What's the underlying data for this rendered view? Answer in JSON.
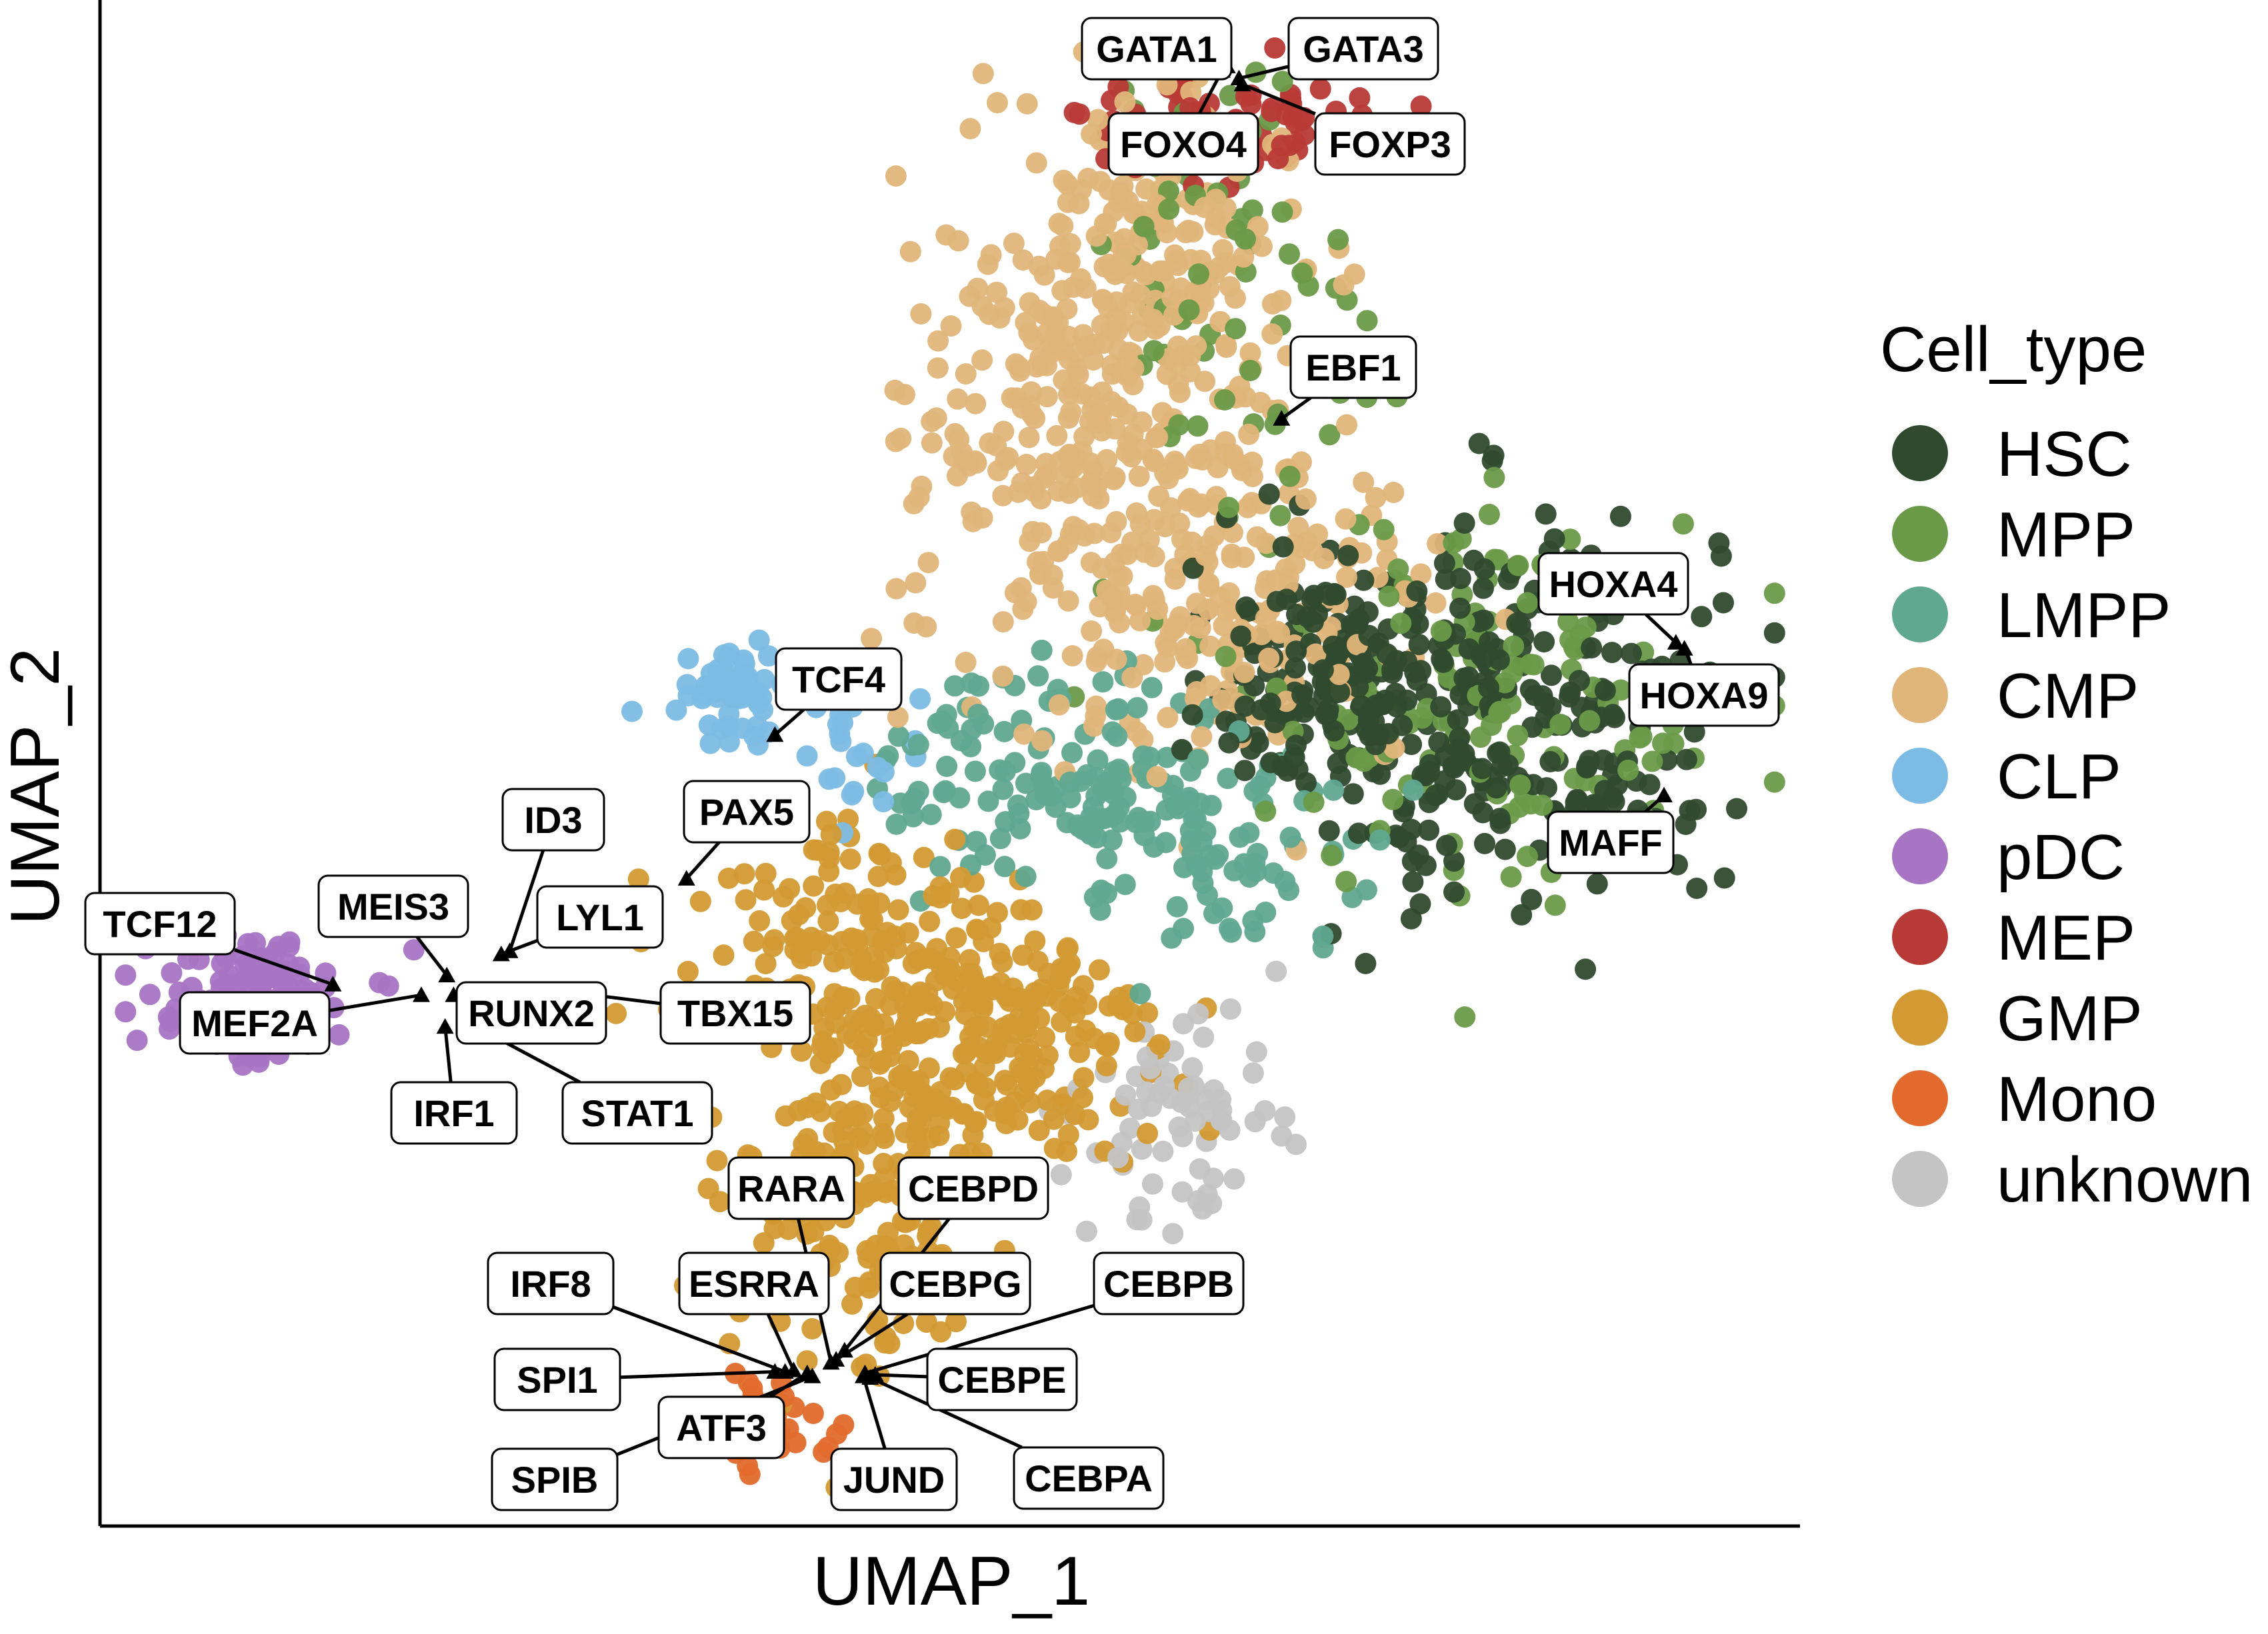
{
  "chart_data": {
    "type": "scatter",
    "xlabel": "UMAP_1",
    "ylabel": "UMAP_2",
    "grid": false,
    "axis_ticks": false,
    "legend": {
      "title": "Cell_type",
      "placement": "right"
    },
    "xlim": [
      0,
      100
    ],
    "ylim": [
      0,
      100
    ],
    "series": [
      {
        "name": "HSC",
        "color": "#2F4A2E",
        "count": 420,
        "clusters": [
          {
            "cx": 82,
            "cy": 54,
            "sx": 6.5,
            "sy": 6.5,
            "frac": 0.7
          },
          {
            "cx": 72,
            "cy": 57,
            "sx": 3,
            "sy": 4,
            "frac": 0.3
          }
        ]
      },
      {
        "name": "MPP",
        "color": "#6A9A48",
        "count": 230,
        "clusters": [
          {
            "cx": 82,
            "cy": 55,
            "sx": 8.5,
            "sy": 6.5,
            "frac": 0.7
          },
          {
            "cx": 66,
            "cy": 84,
            "sx": 4,
            "sy": 6,
            "frac": 0.3
          }
        ]
      },
      {
        "name": "LMPP",
        "color": "#60A890",
        "count": 210,
        "clusters": [
          {
            "cx": 56,
            "cy": 50,
            "sx": 5,
            "sy": 3.5,
            "frac": 0.6
          },
          {
            "cx": 66,
            "cy": 45,
            "sx": 5,
            "sy": 3.5,
            "frac": 0.4
          }
        ]
      },
      {
        "name": "CMP",
        "color": "#E0B57A",
        "count": 620,
        "clusters": [
          {
            "cx": 59,
            "cy": 74,
            "sx": 5.5,
            "sy": 9,
            "frac": 0.6
          },
          {
            "cx": 67,
            "cy": 60,
            "sx": 6,
            "sy": 5,
            "frac": 0.25
          },
          {
            "cx": 63,
            "cy": 86,
            "sx": 4,
            "sy": 4,
            "frac": 0.15
          }
        ]
      },
      {
        "name": "CLP",
        "color": "#7CBCE4",
        "count": 80,
        "clusters": [
          {
            "cx": 37.5,
            "cy": 55,
            "sx": 1.5,
            "sy": 1.3,
            "frac": 0.7
          },
          {
            "cx": 43,
            "cy": 51,
            "sx": 3,
            "sy": 3,
            "frac": 0.3
          }
        ]
      },
      {
        "name": "pDC",
        "color": "#A874C4",
        "count": 110,
        "clusters": [
          {
            "cx": 9,
            "cy": 35,
            "sx": 3,
            "sy": 2.2,
            "frac": 1.0
          }
        ]
      },
      {
        "name": "MEP",
        "color": "#B83A36",
        "count": 80,
        "clusters": [
          {
            "cx": 66,
            "cy": 93,
            "sx": 5,
            "sy": 2,
            "frac": 1.0
          }
        ]
      },
      {
        "name": "GMP",
        "color": "#D39A34",
        "count": 520,
        "clusters": [
          {
            "cx": 52,
            "cy": 32,
            "sx": 5,
            "sy": 5,
            "frac": 0.45
          },
          {
            "cx": 45,
            "cy": 22,
            "sx": 3.5,
            "sy": 6,
            "frac": 0.35
          },
          {
            "cx": 43,
            "cy": 39,
            "sx": 5,
            "sy": 4,
            "frac": 0.2
          }
        ]
      },
      {
        "name": "Mono",
        "color": "#E26A2C",
        "count": 40,
        "clusters": [
          {
            "cx": 40,
            "cy": 6.5,
            "sx": 2,
            "sy": 1.4,
            "frac": 1.0
          }
        ]
      },
      {
        "name": "unknown",
        "color": "#C4C4C4",
        "count": 70,
        "clusters": [
          {
            "cx": 63.5,
            "cy": 27,
            "sx": 3,
            "sy": 3.5,
            "frac": 1.0
          }
        ]
      }
    ],
    "annotations": [
      {
        "label": "GATA1",
        "x": 66.3,
        "y": 96.5
      },
      {
        "label": "GATA3",
        "x": 67.0,
        "y": 95.7
      },
      {
        "label": "FOXO4",
        "x": 66.0,
        "y": 96.2
      },
      {
        "label": "FOXP3",
        "x": 67.2,
        "y": 95.3
      },
      {
        "label": "EBF1",
        "x": 69.5,
        "y": 73.2
      },
      {
        "label": "HOXA4",
        "x": 92.7,
        "y": 58.4
      },
      {
        "label": "HOXA9",
        "x": 93.2,
        "y": 58.0
      },
      {
        "label": "MAFF",
        "x": 92.0,
        "y": 48.3
      },
      {
        "label": "TCF4",
        "x": 39.7,
        "y": 52.3
      },
      {
        "label": "PAX5",
        "x": 34.5,
        "y": 42.8
      },
      {
        "label": "ID3",
        "x": 24.1,
        "y": 38.0
      },
      {
        "label": "LYL1",
        "x": 23.6,
        "y": 37.8
      },
      {
        "label": "MEIS3",
        "x": 20.4,
        "y": 36.4
      },
      {
        "label": "TCF12",
        "x": 13.7,
        "y": 35.8
      },
      {
        "label": "MEF2A",
        "x": 18.9,
        "y": 35.1
      },
      {
        "label": "RUNX2",
        "x": 20.8,
        "y": 35.1
      },
      {
        "label": "TBX15",
        "x": 27.6,
        "y": 35.3
      },
      {
        "label": "IRF1",
        "x": 20.3,
        "y": 33.0
      },
      {
        "label": "STAT1",
        "x": 21.8,
        "y": 33.2
      },
      {
        "label": "RARA",
        "x": 43.0,
        "y": 10.8
      },
      {
        "label": "CEBPD",
        "x": 43.8,
        "y": 11.6
      },
      {
        "label": "IRF8",
        "x": 40.3,
        "y": 10.2
      },
      {
        "label": "ESRRA",
        "x": 40.8,
        "y": 10.3
      },
      {
        "label": "CEBPG",
        "x": 43.3,
        "y": 11.0
      },
      {
        "label": "CEBPB",
        "x": 45.0,
        "y": 10.1
      },
      {
        "label": "SPI1",
        "x": 39.7,
        "y": 10.2
      },
      {
        "label": "CEBPE",
        "x": 45.6,
        "y": 10.0
      },
      {
        "label": "ATF3",
        "x": 41.6,
        "y": 10.1
      },
      {
        "label": "SPIB",
        "x": 41.9,
        "y": 9.9
      },
      {
        "label": "JUND",
        "x": 44.9,
        "y": 9.9
      },
      {
        "label": "CEBPA",
        "x": 45.3,
        "y": 9.8
      }
    ]
  }
}
